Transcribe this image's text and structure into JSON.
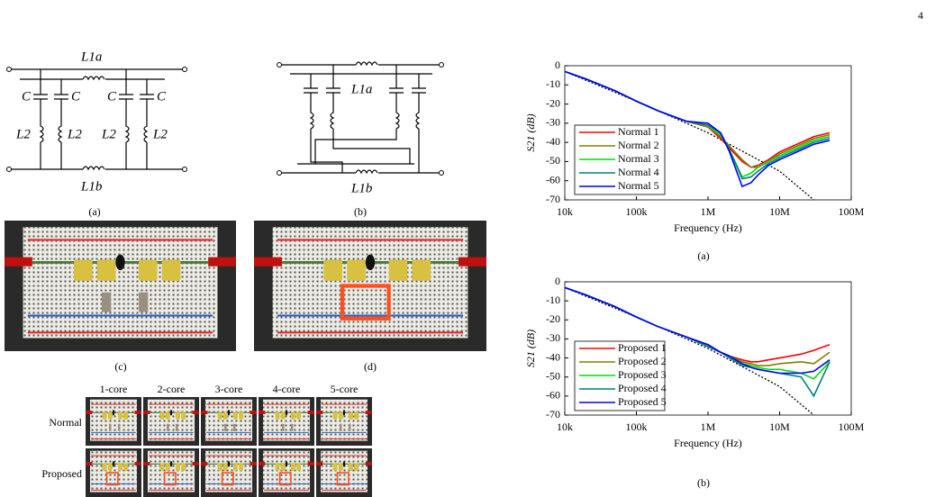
{
  "page_number": "4",
  "circuit_a": {
    "top_inductor": "L1a",
    "bottom_inductor": "L1b",
    "capacitor": "C",
    "shunt_inductor": "L2",
    "caption": "(a)"
  },
  "circuit_b": {
    "top_inductor": "L1a",
    "bottom_inductor": "L1b",
    "caption": "(b)"
  },
  "photos": {
    "c_caption": "(c)",
    "d_caption": "(d)"
  },
  "photo_table": {
    "columns": [
      "1-core",
      "2-core",
      "3-core",
      "4-core",
      "5-core"
    ],
    "rows": [
      "Normal",
      "Proposed"
    ]
  },
  "chart_data": [
    {
      "type": "line",
      "caption": "(a)",
      "xlabel": "Frequency (Hz)",
      "ylabel": "S21 (dB)",
      "xscale": "log",
      "grid": false,
      "legend": "center left",
      "x": [
        10000,
        20000,
        50000,
        100000,
        200000,
        500000,
        1000000,
        1500000,
        2000000,
        3000000,
        4000000,
        5000000,
        7000000,
        10000000,
        20000000,
        30000000,
        50000000
      ],
      "xlim": [
        10000,
        100000000
      ],
      "xticks": [
        {
          "value": 10000,
          "label": "10k"
        },
        {
          "value": 100000,
          "label": "100k"
        },
        {
          "value": 1000000,
          "label": "1M"
        },
        {
          "value": 10000000,
          "label": "10M"
        },
        {
          "value": 100000000,
          "label": "100M"
        }
      ],
      "ylim": [
        -70,
        0
      ],
      "yticks": [
        0,
        -10,
        -20,
        -30,
        -40,
        -50,
        -60,
        -70
      ],
      "series": [
        {
          "name": "Normal 1",
          "color": "#ff0000",
          "values": [
            -3,
            -7,
            -13,
            -18.5,
            -23.5,
            -29,
            -32,
            -38,
            -43,
            -50,
            -53,
            -52,
            -49,
            -45,
            -40,
            -37,
            -35
          ]
        },
        {
          "name": "Normal 2",
          "color": "#808000",
          "values": [
            -3,
            -7,
            -13,
            -18.5,
            -23.5,
            -29,
            -32,
            -37,
            -42,
            -49,
            -53,
            -53,
            -50,
            -46,
            -41,
            -38,
            -36
          ]
        },
        {
          "name": "Normal 3",
          "color": "#00dd00",
          "values": [
            -3,
            -7,
            -13,
            -18.5,
            -23.5,
            -29,
            -31,
            -36,
            -44,
            -58,
            -56,
            -53,
            -50,
            -47,
            -42,
            -39,
            -37
          ]
        },
        {
          "name": "Normal 4",
          "color": "#008080",
          "values": [
            -3,
            -7,
            -13,
            -18.5,
            -23.5,
            -29,
            -31,
            -35,
            -44,
            -59,
            -58,
            -55,
            -51,
            -48,
            -43,
            -40,
            -38
          ]
        },
        {
          "name": "Normal 5",
          "color": "#0000ff",
          "values": [
            -3,
            -7,
            -13,
            -18.5,
            -23.5,
            -29,
            -30,
            -35,
            -45,
            -63,
            -61,
            -57,
            -52,
            -49,
            -44,
            -41,
            -39
          ]
        }
      ],
      "reference_line": {
        "color": "#000000",
        "x": [
          10000,
          100000,
          1000000,
          10000000,
          30000000
        ],
        "values": [
          -3,
          -18.5,
          -35,
          -55,
          -70
        ]
      }
    },
    {
      "type": "line",
      "caption": "(b)",
      "xlabel": "Frequency (Hz)",
      "ylabel": "S21 (dB)",
      "xscale": "log",
      "grid": false,
      "legend": "center left",
      "x": [
        10000,
        20000,
        50000,
        100000,
        200000,
        500000,
        1000000,
        1500000,
        2000000,
        3000000,
        4000000,
        5000000,
        7000000,
        10000000,
        20000000,
        30000000,
        50000000
      ],
      "xlim": [
        10000,
        100000000
      ],
      "xticks": [
        {
          "value": 10000,
          "label": "10k"
        },
        {
          "value": 100000,
          "label": "100k"
        },
        {
          "value": 1000000,
          "label": "1M"
        },
        {
          "value": 10000000,
          "label": "10M"
        },
        {
          "value": 100000000,
          "label": "100M"
        }
      ],
      "ylim": [
        -70,
        0
      ],
      "yticks": [
        0,
        -10,
        -20,
        -30,
        -40,
        -50,
        -60,
        -70
      ],
      "series": [
        {
          "name": "Proposed 1",
          "color": "#ff0000",
          "values": [
            -3,
            -7,
            -13,
            -18.5,
            -23.5,
            -29,
            -34,
            -37,
            -39,
            -41,
            -42,
            -42,
            -41,
            -40,
            -38,
            -36,
            -33
          ]
        },
        {
          "name": "Proposed 2",
          "color": "#808000",
          "values": [
            -3,
            -7,
            -13,
            -18.5,
            -23.5,
            -29,
            -34,
            -37,
            -39,
            -42,
            -43,
            -44,
            -44,
            -43,
            -42,
            -43,
            -37
          ]
        },
        {
          "name": "Proposed 3",
          "color": "#00dd00",
          "values": [
            -3,
            -7,
            -13,
            -18.5,
            -23.5,
            -29,
            -34,
            -37,
            -40,
            -43,
            -44,
            -45,
            -46,
            -46,
            -48,
            -51,
            -42
          ]
        },
        {
          "name": "Proposed 4",
          "color": "#008080",
          "values": [
            -3,
            -7,
            -13,
            -18.5,
            -23.5,
            -29,
            -34,
            -37,
            -40,
            -44,
            -45,
            -46,
            -47,
            -48,
            -50,
            -60,
            -42
          ]
        },
        {
          "name": "Proposed 5",
          "color": "#0000ff",
          "values": [
            -3,
            -7,
            -13,
            -18.5,
            -23.5,
            -29,
            -33,
            -37,
            -39,
            -43,
            -45,
            -46,
            -47,
            -48,
            -48,
            -47,
            -41
          ]
        }
      ],
      "reference_line": {
        "color": "#000000",
        "x": [
          10000,
          100000,
          1000000,
          10000000,
          30000000
        ],
        "values": [
          -3,
          -18.5,
          -35,
          -55,
          -70
        ]
      }
    }
  ]
}
